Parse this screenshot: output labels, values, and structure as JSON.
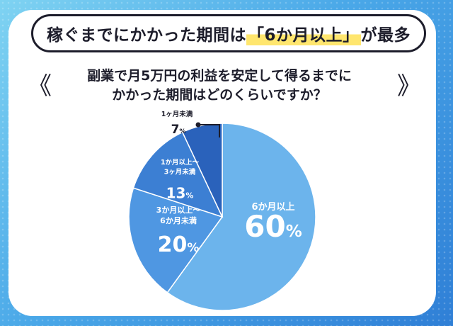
{
  "headline": {
    "prefix": "稼ぐまでにかかった期間は",
    "highlight": "「6か月以上」",
    "suffix": "が最多"
  },
  "question": {
    "line1": "副業で月5万円の利益を安定して得るまでに",
    "line2": "かかった期間はどのくらいですか？"
  },
  "nav": {
    "prev": "《",
    "next": "》"
  },
  "colors": {
    "slice_6plus": "#6cb4ec",
    "slice_3to6": "#4f97e2",
    "slice_1to3": "#3c7fd3",
    "slice_under1": "#2a62bb"
  },
  "chart_data": {
    "type": "pie",
    "categories": [
      "6か月以上",
      "3か月以上〜6か月未満",
      "1か月以上〜3ヶ月未満",
      "1ヶ月未満"
    ],
    "values": [
      60,
      20,
      13,
      7
    ],
    "unit": "%",
    "labels": [
      {
        "lines": [
          "6か月以上"
        ],
        "value": "60"
      },
      {
        "lines": [
          "3か月以上〜",
          "6か月未満"
        ],
        "value": "20"
      },
      {
        "lines": [
          "1か月以上〜",
          "3ヶ月未満"
        ],
        "value": "13"
      },
      {
        "lines": [
          "1ヶ月未満"
        ],
        "value": "7"
      }
    ]
  }
}
